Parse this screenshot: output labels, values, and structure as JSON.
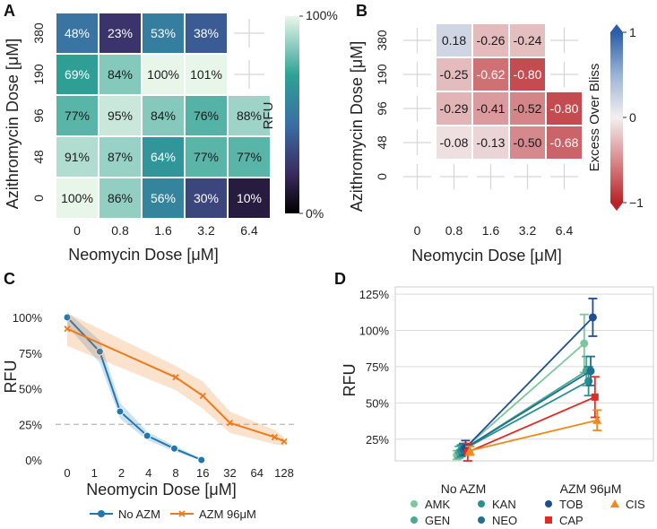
{
  "colors": {
    "panelA_low": "#26172f",
    "panelA_mid": "#2a9a91",
    "panelA_high": "#e7f5e8",
    "panelB_neg": "#b82328",
    "panelB_zero": "#f2eeef",
    "panelB_pos": "#2a5ea8",
    "no_azm": "#1f77b4",
    "azm96": "#ef7a1a",
    "grid": "#cfcfcf",
    "threshold": "#b8b8b8"
  },
  "chart_data": [
    {
      "panel": "A",
      "type": "heatmap",
      "xlabel": "Neomycin Dose [μM]",
      "ylabel": "Azithromycin Dose [μM]",
      "x_ticks": [
        "0",
        "0.8",
        "1.6",
        "3.2",
        "6.4"
      ],
      "y_ticks": [
        "380",
        "190",
        "96",
        "48",
        "0"
      ],
      "labels": [
        [
          "48%",
          "23%",
          "53%",
          "38%",
          ""
        ],
        [
          "69%",
          "84%",
          "100%",
          "101%",
          ""
        ],
        [
          "77%",
          "95%",
          "84%",
          "76%",
          "88%"
        ],
        [
          "91%",
          "87%",
          "64%",
          "77%",
          "77%"
        ],
        [
          "100%",
          "86%",
          "56%",
          "30%",
          "10%"
        ]
      ],
      "values": [
        [
          48,
          23,
          53,
          38,
          null
        ],
        [
          69,
          84,
          100,
          101,
          null
        ],
        [
          77,
          95,
          84,
          76,
          88
        ],
        [
          91,
          87,
          64,
          77,
          77
        ],
        [
          100,
          86,
          56,
          30,
          10
        ]
      ],
      "colorbar": {
        "label": "RFU",
        "min_label": "0%",
        "max_label": "100%",
        "range": [
          0,
          100
        ]
      }
    },
    {
      "panel": "B",
      "type": "heatmap",
      "xlabel": "Neomycin Dose [μM]",
      "ylabel": "Azithromycin Dose [μM]",
      "x_ticks": [
        "0",
        "0.8",
        "1.6",
        "3.2",
        "6.4"
      ],
      "y_ticks": [
        "380",
        "190",
        "96",
        "48",
        "0"
      ],
      "labels": [
        [
          "",
          "0.18",
          "-0.26",
          "-0.24",
          ""
        ],
        [
          "",
          "-0.25",
          "-0.62",
          "-0.80",
          ""
        ],
        [
          "",
          "-0.29",
          "-0.41",
          "-0.52",
          "-0.80"
        ],
        [
          "",
          "-0.08",
          "-0.13",
          "-0.50",
          "-0.68"
        ],
        [
          "",
          "",
          "",
          "",
          ""
        ]
      ],
      "values": [
        [
          null,
          0.18,
          -0.26,
          -0.24,
          null
        ],
        [
          null,
          -0.25,
          -0.62,
          -0.8,
          null
        ],
        [
          null,
          -0.29,
          -0.41,
          -0.52,
          -0.8
        ],
        [
          null,
          -0.08,
          -0.13,
          -0.5,
          -0.68
        ],
        [
          null,
          null,
          null,
          null,
          null
        ]
      ],
      "colorbar": {
        "label": "Excess Over Bliss",
        "max_label": "1",
        "mid_label": "0",
        "min_label": "−1",
        "range": [
          -1,
          1
        ]
      }
    },
    {
      "panel": "C",
      "type": "line",
      "xlabel": "Neomycin Dose [μM]",
      "ylabel": "RFU",
      "x_ticks": [
        "0",
        "1",
        "2",
        "4",
        "8",
        "16",
        "32",
        "64",
        "128"
      ],
      "y_ticks": [
        "0%",
        "25%",
        "50%",
        "75%",
        "100%"
      ],
      "ylim": [
        0,
        100
      ],
      "threshold": 25,
      "series": [
        {
          "name": "No AZM",
          "x_pos": [
            0,
            1.2,
            1.95,
            2.95,
            3.95,
            4.95
          ],
          "values": [
            100,
            76,
            34,
            17,
            8,
            0
          ],
          "lower": [
            94,
            68,
            29,
            14,
            6,
            0
          ],
          "upper": [
            104,
            84,
            40,
            20,
            10,
            1
          ]
        },
        {
          "name": "AZM 96μM",
          "x_pos": [
            0,
            4.0,
            5.0,
            6.0,
            7.65,
            8.0
          ],
          "values": [
            92,
            58,
            45,
            26,
            16,
            13
          ],
          "lower": [
            80,
            49,
            36,
            19,
            11,
            10
          ],
          "upper": [
            103,
            66,
            55,
            34,
            21,
            16
          ]
        }
      ],
      "legend": {
        "position": "bottom",
        "entries": [
          "No AZM",
          "AZM 96μM"
        ]
      }
    },
    {
      "panel": "D",
      "type": "scatter",
      "ylabel": "RFU",
      "categories": [
        "No AZM",
        "AZM 96μM"
      ],
      "y_ticks": [
        "25%",
        "50%",
        "75%",
        "100%",
        "125%"
      ],
      "ylim": [
        10,
        130
      ],
      "series": [
        {
          "name": "AMK",
          "color": "#7cc79d",
          "marker": "circle",
          "values": [
            14,
            91
          ],
          "errors": [
            3,
            20
          ]
        },
        {
          "name": "GEN",
          "color": "#4aaa8f",
          "marker": "circle",
          "values": [
            16,
            72
          ],
          "errors": [
            4,
            10
          ]
        },
        {
          "name": "KAN",
          "color": "#2a8f8f",
          "marker": "circle",
          "values": [
            17,
            65
          ],
          "errors": [
            4,
            10
          ]
        },
        {
          "name": "NEO",
          "color": "#21708f",
          "marker": "circle",
          "values": [
            18,
            72
          ],
          "errors": [
            4,
            10
          ]
        },
        {
          "name": "TOB",
          "color": "#1f4f92",
          "marker": "circle",
          "values": [
            19,
            109
          ],
          "errors": [
            5,
            13
          ]
        },
        {
          "name": "CAP",
          "color": "#e02c26",
          "marker": "square",
          "values": [
            16,
            54
          ],
          "errors": [
            6,
            14
          ]
        },
        {
          "name": "CIS",
          "color": "#f08a1a",
          "marker": "triangle",
          "values": [
            17,
            38
          ],
          "errors": [
            3,
            7
          ]
        }
      ],
      "legend": {
        "position": "bottom",
        "entries": [
          "AMK",
          "KAN",
          "TOB",
          "CIS",
          "GEN",
          "NEO",
          "CAP"
        ]
      }
    }
  ]
}
